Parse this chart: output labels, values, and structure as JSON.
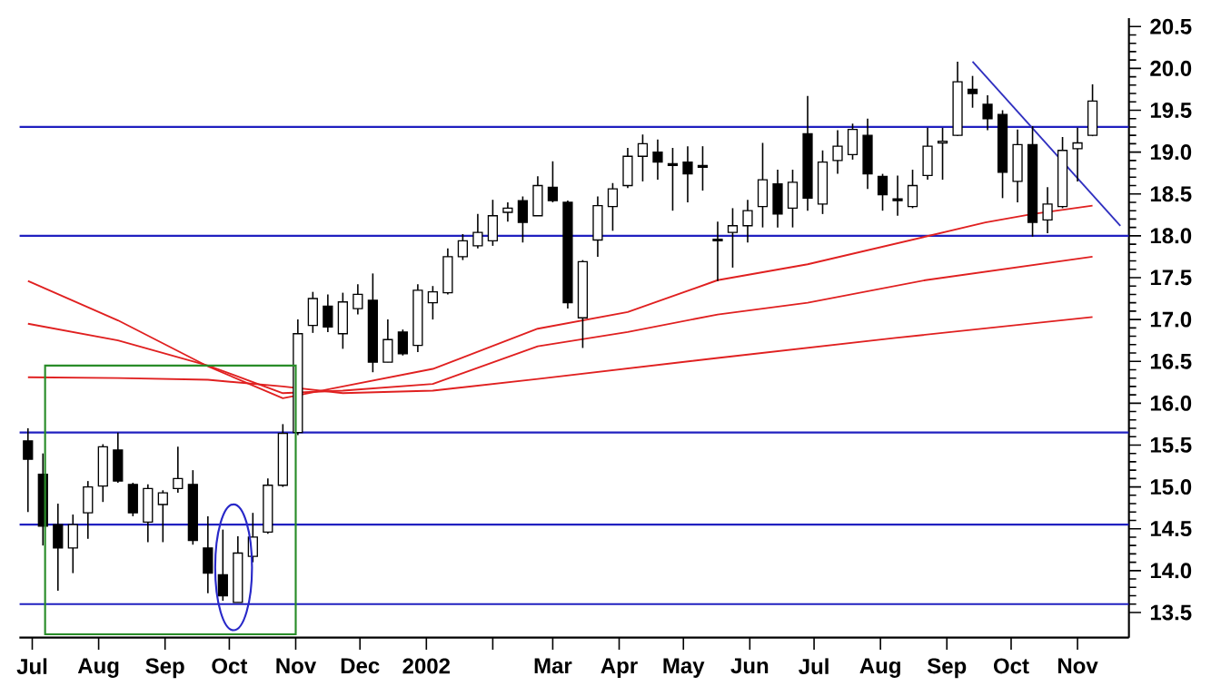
{
  "chart_data": {
    "type": "candlestick",
    "x": [
      "2001-06-29",
      "2001-07-06",
      "2001-07-13",
      "2001-07-20",
      "2001-07-27",
      "2001-08-03",
      "2001-08-10",
      "2001-08-17",
      "2001-08-24",
      "2001-08-31",
      "2001-09-07",
      "2001-09-14",
      "2001-09-21",
      "2001-09-28",
      "2001-10-05",
      "2001-10-12",
      "2001-10-19",
      "2001-10-26",
      "2001-11-02",
      "2001-11-09",
      "2001-11-16",
      "2001-11-23",
      "2001-11-30",
      "2001-12-07",
      "2001-12-14",
      "2001-12-21",
      "2001-12-28",
      "2002-01-04",
      "2002-01-11",
      "2002-01-18",
      "2002-01-25",
      "2002-02-01",
      "2002-02-08",
      "2002-02-15",
      "2002-02-22",
      "2002-03-01",
      "2002-03-08",
      "2002-03-15",
      "2002-03-22",
      "2002-03-29",
      "2002-04-05",
      "2002-04-12",
      "2002-04-19",
      "2002-04-26",
      "2002-05-03",
      "2002-05-10",
      "2002-05-17",
      "2002-05-24",
      "2002-05-31",
      "2002-06-07",
      "2002-06-14",
      "2002-06-21",
      "2002-06-28",
      "2002-07-05",
      "2002-07-12",
      "2002-07-19",
      "2002-07-26",
      "2002-08-02",
      "2002-08-09",
      "2002-08-16",
      "2002-08-23",
      "2002-08-30",
      "2002-09-06",
      "2002-09-13",
      "2002-09-20",
      "2002-09-27",
      "2002-10-04",
      "2002-10-11",
      "2002-10-18",
      "2002-10-25",
      "2002-11-01",
      "2002-11-08"
    ],
    "ohlc": [
      [
        15.55,
        15.7,
        14.7,
        15.33
      ],
      [
        15.15,
        15.4,
        14.3,
        14.53
      ],
      [
        14.55,
        14.8,
        13.76,
        14.27
      ],
      [
        14.27,
        14.67,
        13.97,
        14.55
      ],
      [
        14.69,
        15.07,
        14.38,
        15.0
      ],
      [
        15.01,
        15.51,
        14.82,
        15.48
      ],
      [
        15.44,
        15.65,
        15.05,
        15.07
      ],
      [
        15.03,
        15.05,
        14.65,
        14.69
      ],
      [
        14.58,
        15.03,
        14.34,
        14.98
      ],
      [
        14.79,
        14.96,
        14.34,
        14.93
      ],
      [
        14.98,
        15.48,
        14.93,
        15.1
      ],
      [
        15.03,
        15.2,
        14.31,
        14.36
      ],
      [
        14.27,
        14.65,
        13.73,
        13.97
      ],
      [
        13.95,
        14.49,
        13.64,
        13.7
      ],
      [
        13.62,
        14.41,
        13.62,
        14.21
      ],
      [
        14.17,
        14.69,
        14.1,
        14.4
      ],
      [
        14.46,
        15.1,
        14.44,
        15.02
      ],
      [
        15.02,
        15.75,
        15.0,
        15.64
      ],
      [
        15.65,
        17.0,
        15.62,
        16.83
      ],
      [
        16.93,
        17.33,
        16.84,
        17.25
      ],
      [
        17.16,
        17.3,
        16.85,
        16.91
      ],
      [
        16.83,
        17.32,
        16.65,
        17.21
      ],
      [
        17.13,
        17.42,
        17.06,
        17.3
      ],
      [
        17.23,
        17.55,
        16.37,
        16.49
      ],
      [
        16.49,
        17.0,
        16.49,
        16.76
      ],
      [
        16.85,
        16.88,
        16.57,
        16.59
      ],
      [
        16.69,
        17.42,
        16.61,
        17.35
      ],
      [
        17.2,
        17.4,
        17.0,
        17.33
      ],
      [
        17.32,
        17.85,
        17.3,
        17.75
      ],
      [
        17.75,
        18.02,
        17.71,
        17.94
      ],
      [
        17.88,
        18.26,
        17.85,
        18.04
      ],
      [
        17.94,
        18.43,
        17.88,
        18.24
      ],
      [
        18.28,
        18.4,
        18.17,
        18.33
      ],
      [
        18.42,
        18.47,
        17.92,
        18.16
      ],
      [
        18.24,
        18.71,
        18.24,
        18.6
      ],
      [
        18.58,
        18.89,
        18.4,
        18.42
      ],
      [
        18.4,
        18.42,
        17.13,
        17.2
      ],
      [
        17.02,
        17.71,
        16.66,
        17.69
      ],
      [
        17.95,
        18.47,
        17.75,
        18.36
      ],
      [
        18.35,
        18.63,
        18.06,
        18.56
      ],
      [
        18.6,
        19.05,
        18.57,
        18.95
      ],
      [
        18.95,
        19.21,
        18.65,
        19.1
      ],
      [
        19.0,
        19.15,
        18.67,
        18.88
      ],
      [
        18.86,
        19.05,
        18.3,
        18.84
      ],
      [
        18.88,
        19.07,
        18.4,
        18.74
      ],
      [
        18.84,
        19.07,
        18.54,
        18.82
      ],
      [
        17.96,
        18.17,
        17.46,
        17.94
      ],
      [
        18.04,
        18.33,
        17.62,
        18.12
      ],
      [
        18.12,
        18.43,
        17.92,
        18.3
      ],
      [
        18.35,
        19.11,
        18.1,
        18.67
      ],
      [
        18.62,
        18.79,
        18.1,
        18.26
      ],
      [
        18.33,
        18.79,
        18.1,
        18.64
      ],
      [
        19.22,
        19.67,
        18.3,
        18.45
      ],
      [
        18.38,
        19.02,
        18.26,
        18.88
      ],
      [
        18.9,
        19.26,
        18.74,
        19.07
      ],
      [
        18.97,
        19.34,
        18.91,
        19.27
      ],
      [
        19.2,
        19.4,
        18.56,
        18.74
      ],
      [
        18.71,
        18.74,
        18.3,
        18.49
      ],
      [
        18.44,
        18.72,
        18.24,
        18.42
      ],
      [
        18.35,
        18.79,
        18.33,
        18.6
      ],
      [
        18.72,
        19.29,
        18.67,
        19.07
      ],
      [
        19.11,
        19.29,
        18.67,
        19.13
      ],
      [
        19.2,
        20.08,
        19.19,
        19.84
      ],
      [
        19.75,
        19.91,
        19.53,
        19.7
      ],
      [
        19.57,
        19.68,
        19.26,
        19.4
      ],
      [
        19.45,
        19.5,
        18.45,
        18.76
      ],
      [
        18.65,
        19.27,
        18.4,
        19.09
      ],
      [
        19.09,
        19.31,
        17.99,
        18.16
      ],
      [
        18.19,
        18.58,
        18.03,
        18.38
      ],
      [
        18.35,
        19.18,
        18.33,
        19.02
      ],
      [
        19.04,
        19.29,
        18.65,
        19.11
      ],
      [
        19.2,
        19.81,
        19.19,
        19.61
      ]
    ],
    "series": [
      {
        "type": "line",
        "color": "#e02020",
        "x": [
          "2001-06-29",
          "2001-08-10",
          "2001-09-21",
          "2001-10-26",
          "2001-11-23",
          "2002-01-04",
          "2002-02-22",
          "2002-04-05",
          "2002-05-17",
          "2002-06-28",
          "2002-08-22",
          "2002-09-19",
          "2002-10-11",
          "2002-11-08"
        ],
        "values": [
          17.46,
          16.99,
          16.44,
          16.06,
          16.2,
          16.41,
          16.89,
          17.09,
          17.47,
          17.66,
          17.99,
          18.16,
          18.26,
          18.36
        ]
      },
      {
        "type": "line",
        "color": "#e02020",
        "x": [
          "2001-06-29",
          "2001-08-10",
          "2001-09-21",
          "2001-10-26",
          "2001-11-23",
          "2002-01-04",
          "2002-02-22",
          "2002-04-05",
          "2002-05-17",
          "2002-06-28",
          "2002-08-22",
          "2002-11-08"
        ],
        "values": [
          16.95,
          16.75,
          16.45,
          16.12,
          16.15,
          16.23,
          16.68,
          16.85,
          17.06,
          17.2,
          17.47,
          17.75
        ]
      },
      {
        "type": "line",
        "color": "#e02020",
        "x": [
          "2001-06-29",
          "2001-08-10",
          "2001-09-21",
          "2001-10-26",
          "2001-11-23",
          "2002-01-04",
          "2002-02-22",
          "2002-05-17",
          "2002-08-08",
          "2002-11-08"
        ],
        "values": [
          16.31,
          16.3,
          16.28,
          16.2,
          16.12,
          16.15,
          16.29,
          16.54,
          16.78,
          17.03
        ]
      },
      {
        "type": "line",
        "color": "#3030c0",
        "x": [
          "2002-09-13",
          "2002-11-21"
        ],
        "values": [
          20.08,
          18.12
        ]
      }
    ],
    "ref_lines": [
      {
        "axis": "y",
        "value": 19.3,
        "color": "#2020c0"
      },
      {
        "axis": "y",
        "value": 18.0,
        "color": "#2020c0"
      },
      {
        "axis": "y",
        "value": 15.65,
        "color": "#2020c0"
      },
      {
        "axis": "y",
        "value": 14.55,
        "color": "#2020c0"
      },
      {
        "axis": "y",
        "value": 13.6,
        "color": "#2020c0"
      }
    ],
    "xlim": [
      "2001-06-25",
      "2002-11-25"
    ],
    "ylim": [
      13.2,
      20.6
    ],
    "xticks": [
      {
        "value": "2001-07-01",
        "label": "Jul"
      },
      {
        "value": "2001-08-01",
        "label": "Aug"
      },
      {
        "value": "2001-09-01",
        "label": "Sep"
      },
      {
        "value": "2001-10-01",
        "label": "Oct"
      },
      {
        "value": "2001-11-01",
        "label": "Nov"
      },
      {
        "value": "2001-12-01",
        "label": "Dec"
      },
      {
        "value": "2002-01-01",
        "label": "2002"
      },
      {
        "value": "2002-02-01",
        "label": null
      },
      {
        "value": "2002-03-01",
        "label": "Mar"
      },
      {
        "value": "2002-04-01",
        "label": "Apr"
      },
      {
        "value": "2002-05-01",
        "label": "May"
      },
      {
        "value": "2002-06-01",
        "label": "Jun"
      },
      {
        "value": "2002-07-01",
        "label": "Jul"
      },
      {
        "value": "2002-08-01",
        "label": "Aug"
      },
      {
        "value": "2002-09-01",
        "label": "Sep"
      },
      {
        "value": "2002-10-01",
        "label": "Oct"
      },
      {
        "value": "2002-11-01",
        "label": "Nov"
      }
    ],
    "yticks": [
      13.5,
      {
        "value": 14,
        "label": "14.0"
      },
      14.5,
      {
        "value": 15,
        "label": "15.0"
      },
      15.5,
      {
        "value": 16,
        "label": "16.0"
      },
      16.5,
      {
        "value": 17,
        "label": "17.0"
      },
      17.5,
      {
        "value": 18,
        "label": "18.0"
      },
      18.5,
      {
        "value": 19,
        "label": "19.0"
      },
      19.5,
      {
        "value": 20,
        "label": "20.0"
      },
      20.5
    ],
    "grid": false
  }
}
